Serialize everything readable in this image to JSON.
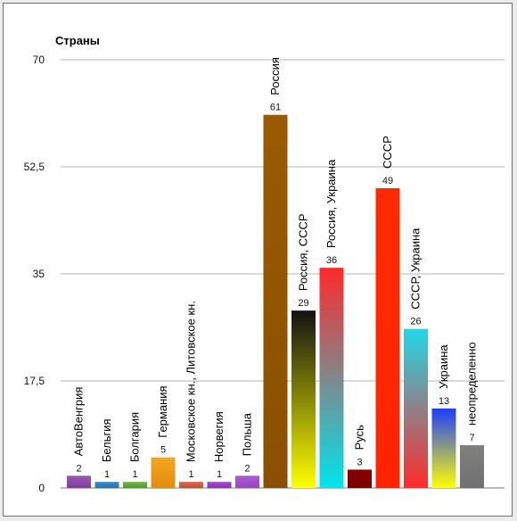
{
  "chart_data": {
    "type": "bar",
    "title": "Страны",
    "xlabel": "",
    "ylabel": "",
    "ylim": [
      0,
      70
    ],
    "yticks": [
      "0",
      "17,5",
      "35",
      "52,5",
      "70"
    ],
    "ytick_values": [
      0,
      17.5,
      35,
      52.5,
      70
    ],
    "grid": true,
    "legend": "none",
    "categories": [
      {
        "name": "АвтоВенгрия",
        "value": 2,
        "colors": [
          "#9b59b6",
          "#7d3c98"
        ]
      },
      {
        "name": "Бельгия",
        "value": 1,
        "colors": [
          "#3b8fd0",
          "#2471a3"
        ]
      },
      {
        "name": "Болгария",
        "value": 1,
        "colors": [
          "#6cbb3c",
          "#4f9a28"
        ]
      },
      {
        "name": "Германия",
        "value": 5,
        "colors": [
          "#f5a623",
          "#e08e0b"
        ]
      },
      {
        "name": "Московское кн., Литовское кн.",
        "value": 1,
        "colors": [
          "#e0674a",
          "#c0503a"
        ]
      },
      {
        "name": "Норвегия",
        "value": 1,
        "colors": [
          "#a64bd0",
          "#8a2fb5"
        ]
      },
      {
        "name": "Польша",
        "value": 2,
        "colors": [
          "#b05bd5",
          "#9a45c0"
        ]
      },
      {
        "name": "Россия",
        "value": 61,
        "colors": [
          "#9a5b00",
          "#8a5000"
        ]
      },
      {
        "name": "Россия, СССР",
        "value": 29,
        "colors": [
          "#111111",
          "#ffff00"
        ]
      },
      {
        "name": "Россия, Украина",
        "value": 36,
        "colors": [
          "#ff2a2a",
          "#00e5ee"
        ]
      },
      {
        "name": "Русь",
        "value": 3,
        "colors": [
          "#8b0000",
          "#7a0000"
        ]
      },
      {
        "name": "СССР",
        "value": 49,
        "colors": [
          "#ff2a00",
          "#ff2400"
        ]
      },
      {
        "name": "СССР, Украина",
        "value": 26,
        "colors": [
          "#20d8e8",
          "#ff2a2a"
        ]
      },
      {
        "name": "Украина",
        "value": 13,
        "colors": [
          "#1e3cff",
          "#ffff00"
        ]
      },
      {
        "name": "неопределенно",
        "value": 7,
        "colors": [
          "#808080",
          "#707070"
        ]
      }
    ]
  }
}
